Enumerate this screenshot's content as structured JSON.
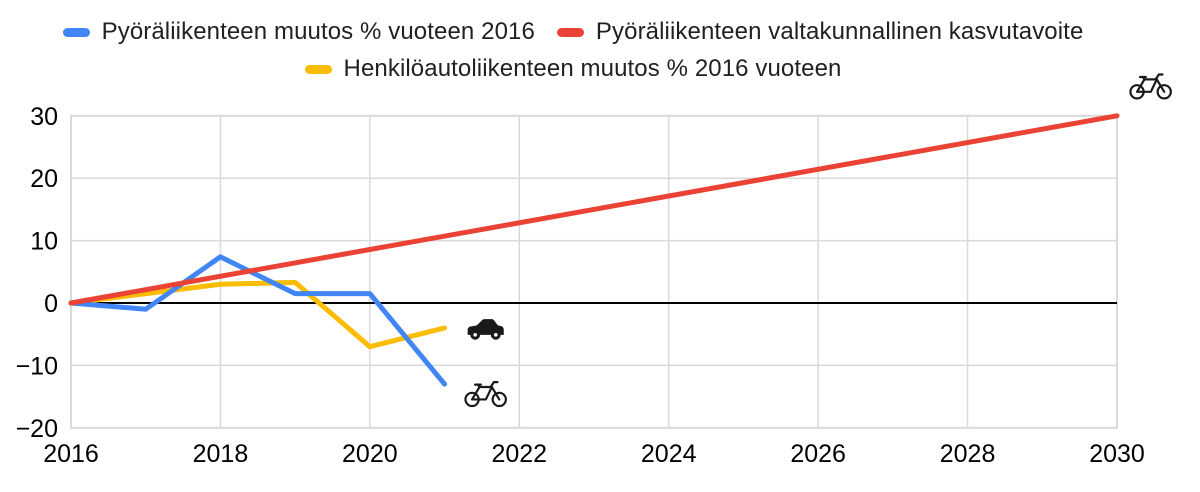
{
  "legend": {
    "items": [
      {
        "label": "Pyöräliikenteen muutos % vuoteen 2016",
        "color": "#4285F4"
      },
      {
        "label": "Pyöräliikenteen valtakunnallinen kasvutavoite",
        "color": "#EA4335"
      },
      {
        "label": "Henkilöautoliikenteen muutos % 2016 vuoteen",
        "color": "#FBBC04"
      }
    ]
  },
  "chart_data": {
    "type": "line",
    "title": "",
    "xlabel": "",
    "ylabel": "",
    "xlim": [
      2016,
      2030
    ],
    "ylim": [
      -20,
      30
    ],
    "x_ticks": [
      2016,
      2018,
      2020,
      2022,
      2024,
      2026,
      2028,
      2030
    ],
    "y_ticks": [
      30,
      20,
      10,
      0,
      -10,
      -20
    ],
    "grid": true,
    "zero_line_value": 0,
    "legend_position": "top",
    "series": [
      {
        "name": "Henkilöautoliikenteen muutos % 2016 vuoteen",
        "color": "#FBBC04",
        "points": [
          [
            2016,
            0
          ],
          [
            2017,
            1.5
          ],
          [
            2018,
            3
          ],
          [
            2019,
            3.3
          ],
          [
            2020,
            -7
          ],
          [
            2021,
            -4
          ]
        ]
      },
      {
        "name": "Pyöräliikenteen muutos % vuoteen 2016",
        "color": "#4285F4",
        "points": [
          [
            2016,
            0
          ],
          [
            2017,
            -1
          ],
          [
            2018,
            7.4
          ],
          [
            2019,
            1.5
          ],
          [
            2020,
            1.5
          ],
          [
            2021,
            -13
          ]
        ]
      },
      {
        "name": "Pyöräliikenteen valtakunnallinen kasvutavoite",
        "color": "#EA4335",
        "points": [
          [
            2016,
            0
          ],
          [
            2030,
            30
          ]
        ]
      }
    ],
    "annotations": [
      {
        "icon": "bicycle",
        "x": 2030.45,
        "y": 35.0
      },
      {
        "icon": "car",
        "x": 2021.55,
        "y": -3.9
      },
      {
        "icon": "bicycle",
        "x": 2021.55,
        "y": -14.3
      }
    ],
    "colors": {
      "grid": "#D9D9D9",
      "border": "#D9D9D9",
      "zero_line": "#000000",
      "tick_text": "#000000",
      "icon": "#1A1A1A"
    }
  }
}
